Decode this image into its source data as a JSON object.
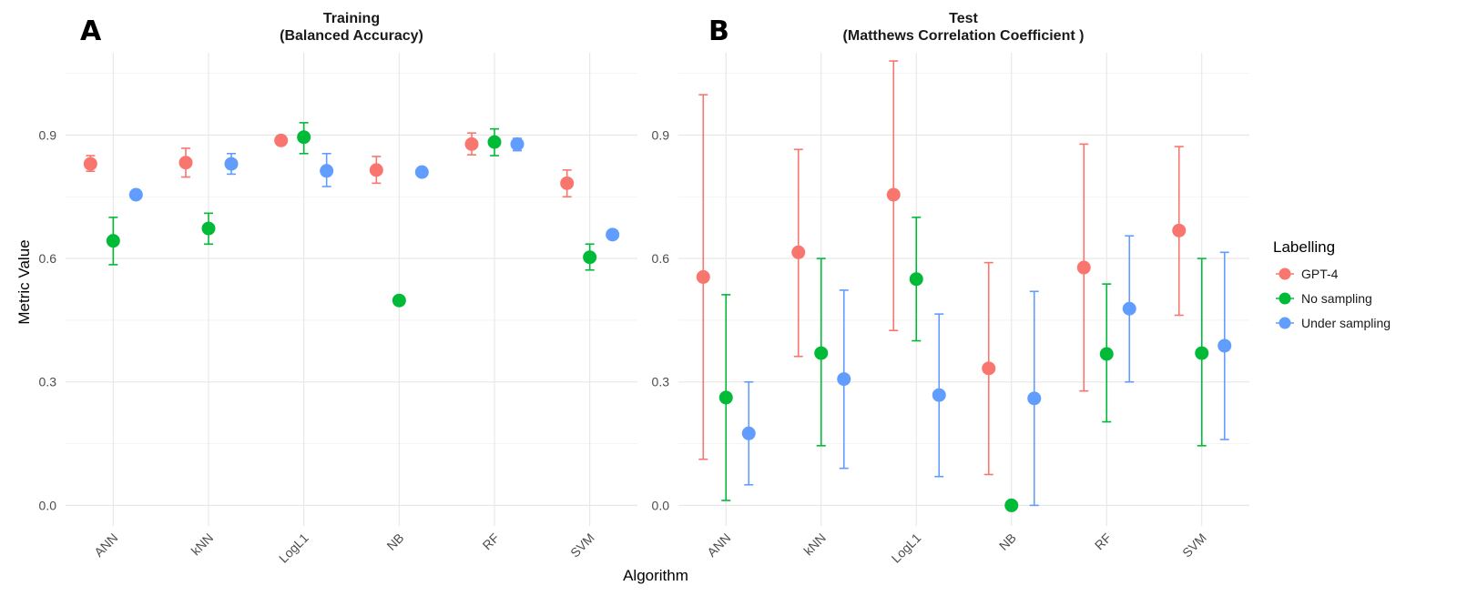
{
  "colors": {
    "GPT-4": "#F8766D",
    "No sampling": "#00BA38",
    "Under sampling": "#619CFF"
  },
  "chart_data": [
    {
      "type": "scatter",
      "panel_letter": "A",
      "title_line1": "Training",
      "title_line2": "(Balanced Accuracy)",
      "ylabel": "Metric Value",
      "ylim": [
        -0.05,
        1.1
      ],
      "yticks": [
        "0.0",
        "0.3",
        "0.6",
        "0.9"
      ],
      "categories": [
        "ANN",
        "kNN",
        "LogL1",
        "NB",
        "RF",
        "SVM"
      ],
      "grid": true,
      "series": [
        {
          "name": "GPT-4",
          "values": [
            0.83,
            0.833,
            0.887,
            0.815,
            0.878,
            0.783
          ],
          "lower": [
            0.812,
            0.798,
            0.878,
            0.783,
            0.852,
            0.75
          ],
          "upper": [
            0.85,
            0.868,
            0.897,
            0.848,
            0.905,
            0.815
          ]
        },
        {
          "name": "No sampling",
          "values": [
            0.643,
            0.673,
            0.895,
            0.498,
            0.883,
            0.603
          ],
          "lower": [
            0.585,
            0.635,
            0.855,
            0.49,
            0.85,
            0.572
          ],
          "upper": [
            0.7,
            0.71,
            0.93,
            0.505,
            0.915,
            0.635
          ]
        },
        {
          "name": "Under sampling",
          "values": [
            0.755,
            0.83,
            0.813,
            0.81,
            0.878,
            0.658
          ],
          "lower": [
            0.748,
            0.805,
            0.775,
            0.802,
            0.862,
            0.65
          ],
          "upper": [
            0.762,
            0.855,
            0.855,
            0.818,
            0.892,
            0.665
          ]
        }
      ]
    },
    {
      "type": "scatter",
      "panel_letter": "B",
      "title_line1": "Test",
      "title_line2": "(Matthews Correlation Coefficient )",
      "ylim": [
        -0.05,
        1.1
      ],
      "yticks": [
        "0.0",
        "0.3",
        "0.6",
        "0.9"
      ],
      "categories": [
        "ANN",
        "kNN",
        "LogL1",
        "NB",
        "RF",
        "SVM"
      ],
      "grid": true,
      "series": [
        {
          "name": "GPT-4",
          "values": [
            0.555,
            0.615,
            0.755,
            0.333,
            0.578,
            0.668
          ],
          "lower": [
            0.112,
            0.362,
            0.425,
            0.075,
            0.278,
            0.462
          ],
          "upper": [
            0.998,
            0.865,
            1.08,
            0.59,
            0.878,
            0.872
          ]
        },
        {
          "name": "No sampling",
          "values": [
            0.262,
            0.37,
            0.55,
            0.0,
            0.368,
            0.37
          ],
          "lower": [
            0.012,
            0.145,
            0.4,
            0.0,
            0.203,
            0.145
          ],
          "upper": [
            0.512,
            0.6,
            0.7,
            0.0,
            0.538,
            0.6
          ]
        },
        {
          "name": "Under sampling",
          "values": [
            0.175,
            0.307,
            0.268,
            0.26,
            0.478,
            0.388
          ],
          "lower": [
            0.05,
            0.09,
            0.07,
            0.0,
            0.3,
            0.16
          ],
          "upper": [
            0.3,
            0.523,
            0.465,
            0.52,
            0.655,
            0.615
          ]
        }
      ]
    }
  ],
  "xlabel": "Algorithm",
  "legend": {
    "title": "Labelling",
    "placement": "right",
    "items": [
      "GPT-4",
      "No sampling",
      "Under sampling"
    ]
  }
}
